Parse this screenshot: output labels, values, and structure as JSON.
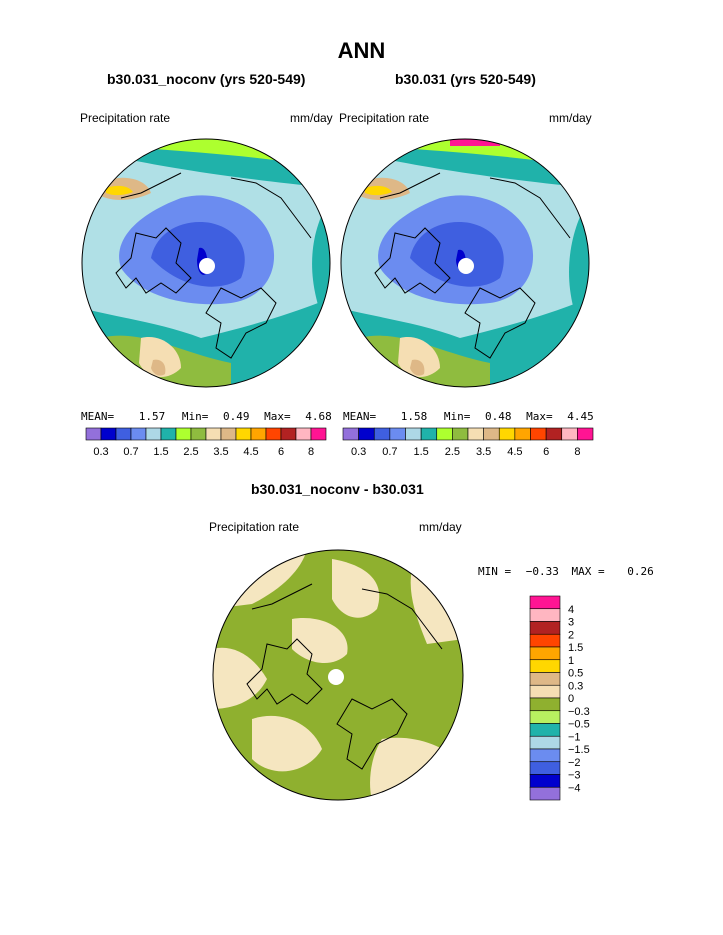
{
  "title": "ANN",
  "panels": [
    {
      "title": "b30.031_noconv (yrs 520-549)",
      "field_label": "Precipitation rate",
      "units": "mm/day",
      "stats": {
        "mean_label": "MEAN=",
        "mean": "1.57",
        "min_label": "Min=",
        "min": "0.49",
        "max_label": "Max=",
        "max": "4.68"
      }
    },
    {
      "title": "b30.031 (yrs 520-549)",
      "field_label": "Precipitation rate",
      "units": "mm/day",
      "stats": {
        "mean_label": "MEAN=",
        "mean": "1.58",
        "min_label": "Min=",
        "min": "0.48",
        "max_label": "Max=",
        "max": "4.45"
      }
    }
  ],
  "colorbar_top": {
    "colors": [
      "#9370db",
      "#0000cd",
      "#3f5fe0",
      "#6b8cf0",
      "#add8e6",
      "#20b2aa",
      "#adff2f",
      "#8fbc3f",
      "#f5deb3",
      "#deb887",
      "#ffd700",
      "#ffa500",
      "#ff4500",
      "#b22222",
      "#ffb6c1",
      "#ff1493"
    ],
    "labels": [
      "0.3",
      "0.7",
      "1.5",
      "2.5",
      "3.5",
      "4.5",
      "6",
      "8"
    ]
  },
  "diff": {
    "title": "b30.031_noconv - b30.031",
    "field_label": "Precipitation rate",
    "units": "mm/day",
    "min_label": "MIN =",
    "min": "−0.33",
    "max_label": "MAX =",
    "max": "0.26"
  },
  "colorbar_diff": {
    "colors": [
      "#ff1493",
      "#ffb6c1",
      "#b22222",
      "#ff4500",
      "#ffa500",
      "#ffd700",
      "#deb887",
      "#f5deb3",
      "#8fb02f",
      "#b8f060",
      "#20b2aa",
      "#add8e6",
      "#6b8cf0",
      "#3f5fe0",
      "#0000cd",
      "#9370db"
    ],
    "labels": [
      "4",
      "3",
      "2",
      "1.5",
      "1",
      "0.5",
      "0.3",
      "0",
      "−0.3",
      "−0.5",
      "−1",
      "−1.5",
      "−2",
      "−3",
      "−4"
    ]
  },
  "map_colors": {
    "ocean_light": "#b0e0e6",
    "mid_blue": "#6b8cf0",
    "deep_blue": "#3f5fe0",
    "navy": "#0000cd",
    "teal": "#20b2aa",
    "green": "#8fbc3f",
    "lime": "#adff2f",
    "tan": "#f5deb3",
    "brown": "#deb887",
    "gold": "#ffd700",
    "pink": "#ff1493",
    "diff_green": "#8fb02f",
    "diff_tan": "#f5e6c0"
  }
}
